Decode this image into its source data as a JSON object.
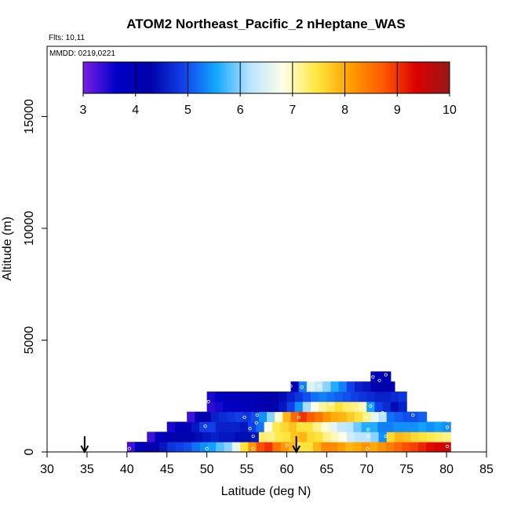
{
  "chart_data": {
    "type": "heatmap",
    "title": "ATOM2 Northeast_Pacific_2 nHeptane_WAS",
    "flights_note": "Flts: 10,11",
    "dates_note": "MMDD: 0219,0221",
    "xlabel": "Latitude (deg N)",
    "ylabel": "Altitude (m)",
    "xlim": [
      30,
      85
    ],
    "ylim": [
      0,
      17500
    ],
    "x_ticks": [
      30,
      35,
      40,
      45,
      50,
      55,
      60,
      65,
      70,
      75,
      80,
      85
    ],
    "y_ticks": [
      0,
      5000,
      10000,
      15000
    ],
    "colorbar": {
      "min": 3,
      "max": 10,
      "ticks": [
        3,
        4,
        5,
        6,
        7,
        8,
        9,
        10
      ],
      "stops": [
        "#7a1fe6",
        "#0000c8",
        "#0000a8",
        "#1040e8",
        "#12a8ff",
        "#b8e4ff",
        "#ffffe8",
        "#ffe840",
        "#ffa000",
        "#ff5a00",
        "#dc0000",
        "#961818"
      ]
    },
    "bin_height_m": 450,
    "rows": [
      {
        "alt": 225,
        "lat_start": 40,
        "lat_end": 80.5,
        "values": [
          3.3,
          3.8,
          4.1,
          4.3,
          4.5,
          4.8,
          4.9,
          5.0,
          5.2,
          5.4,
          5.5,
          5.8,
          6.0,
          6.6,
          7.5,
          8.2,
          8.8,
          9.0,
          8.5,
          8.2,
          7.9,
          7.5,
          7.5,
          7.9,
          8.3,
          8.3,
          8.1,
          7.9,
          8.0,
          8.2,
          8.0,
          8.2,
          8.4,
          8.6,
          8.8,
          8.9,
          9.1,
          9.3,
          9.4,
          9.5
        ]
      },
      {
        "alt": 675,
        "lat_start": 42.5,
        "lat_end": 80.5,
        "values": [
          3.3,
          3.8,
          4.1,
          4.3,
          4.3,
          4.3,
          4.4,
          4.5,
          4.6,
          4.5,
          4.5,
          4.4,
          4.4,
          4.5,
          7.3,
          7.2,
          7.4,
          7.5,
          7.8,
          7.9,
          7.6,
          7.5,
          7.2,
          7.0,
          6.8,
          6.4,
          6.2,
          6.2,
          6.0,
          5.4,
          7.6,
          7.9,
          7.8,
          7.6,
          7.5,
          7.4,
          7.3,
          7.2
        ]
      },
      {
        "alt": 1125,
        "lat_start": 45,
        "lat_end": 80.5,
        "values": [
          3.5,
          4.0,
          4.0,
          4.5,
          4.9,
          4.9,
          4.6,
          4.6,
          4.6,
          4.5,
          4.9,
          5.2,
          6.8,
          7.4,
          7.6,
          7.8,
          7.5,
          7.5,
          7.2,
          6.9,
          6.6,
          6.3,
          6.2,
          5.9,
          5.6,
          5.6,
          5.3,
          5.3,
          5.4,
          5.4,
          5.4,
          5.5,
          5.4,
          5.5,
          5.4
        ]
      },
      {
        "alt": 1575,
        "lat_start": 47.5,
        "lat_end": 77.5,
        "values": [
          3.3,
          4.1,
          4.3,
          4.6,
          4.7,
          4.8,
          4.9,
          4.8,
          5.0,
          5.4,
          6.0,
          6.9,
          7.9,
          8.6,
          9.0,
          8.7,
          8.5,
          8.2,
          8.0,
          7.9,
          7.7,
          7.5,
          7.2,
          6.6,
          6.2,
          5.2,
          5.1,
          5.0,
          5.0,
          5.1
        ]
      },
      {
        "alt": 2025,
        "lat_start": 50,
        "lat_end": 75,
        "values": [
          3.4,
          3.5,
          3.7,
          3.8,
          3.9,
          4.0,
          4.1,
          4.2,
          4.3,
          4.5,
          4.9,
          5.4,
          6.1,
          6.8,
          7.1,
          7.3,
          7.5,
          7.3,
          7.2,
          7.0,
          5.5,
          4.9,
          4.7,
          4.4,
          4.6
        ]
      },
      {
        "alt": 2475,
        "lat_start": 50,
        "lat_end": 75,
        "values": [
          3.5,
          3.8,
          3.9,
          4.0,
          4.0,
          4.0,
          4.1,
          4.2,
          4.3,
          4.4,
          4.6,
          4.8,
          5.0,
          5.2,
          5.3,
          5.2,
          5.1,
          5.0,
          4.9,
          4.8,
          4.7,
          4.6,
          4.6,
          4.7,
          4.8
        ]
      },
      {
        "alt": 2925,
        "lat_start": 60.5,
        "lat_end": 73.5,
        "values": [
          4.0,
          5.3,
          6.5,
          6.3,
          6.0,
          5.6,
          5.3,
          4.9,
          4.6,
          4.5,
          4.3,
          4.3,
          4.2
        ]
      },
      {
        "alt": 3375,
        "lat_start": 70.5,
        "lat_end": 73,
        "values": [
          4.0,
          4.0,
          4.1
        ]
      }
    ],
    "sample_points": [
      [
        40.3,
        150
      ],
      [
        50.0,
        150
      ],
      [
        55.8,
        150
      ],
      [
        60.0,
        300
      ],
      [
        61.1,
        50
      ],
      [
        61.5,
        350
      ],
      [
        70.1,
        150
      ],
      [
        80.1,
        250
      ],
      [
        55.8,
        700
      ],
      [
        70.2,
        700
      ],
      [
        72.4,
        700
      ],
      [
        49.8,
        1150
      ],
      [
        55.4,
        1050
      ],
      [
        56.2,
        1300
      ],
      [
        70.2,
        1000
      ],
      [
        80.1,
        1100
      ],
      [
        54.7,
        1550
      ],
      [
        56.3,
        1650
      ],
      [
        61.5,
        1550
      ],
      [
        70.0,
        1550
      ],
      [
        72.0,
        1750
      ],
      [
        75.8,
        1650
      ],
      [
        80.2,
        1400
      ],
      [
        50.2,
        2250
      ],
      [
        65.4,
        2150
      ],
      [
        65.8,
        2150
      ],
      [
        70.5,
        2050
      ],
      [
        60.5,
        2950
      ],
      [
        61.9,
        2900
      ],
      [
        64.1,
        2950
      ],
      [
        70.8,
        3350
      ],
      [
        71.6,
        3200
      ],
      [
        72.4,
        3450
      ]
    ],
    "flight_markers": [
      34.7,
      61.2
    ]
  }
}
